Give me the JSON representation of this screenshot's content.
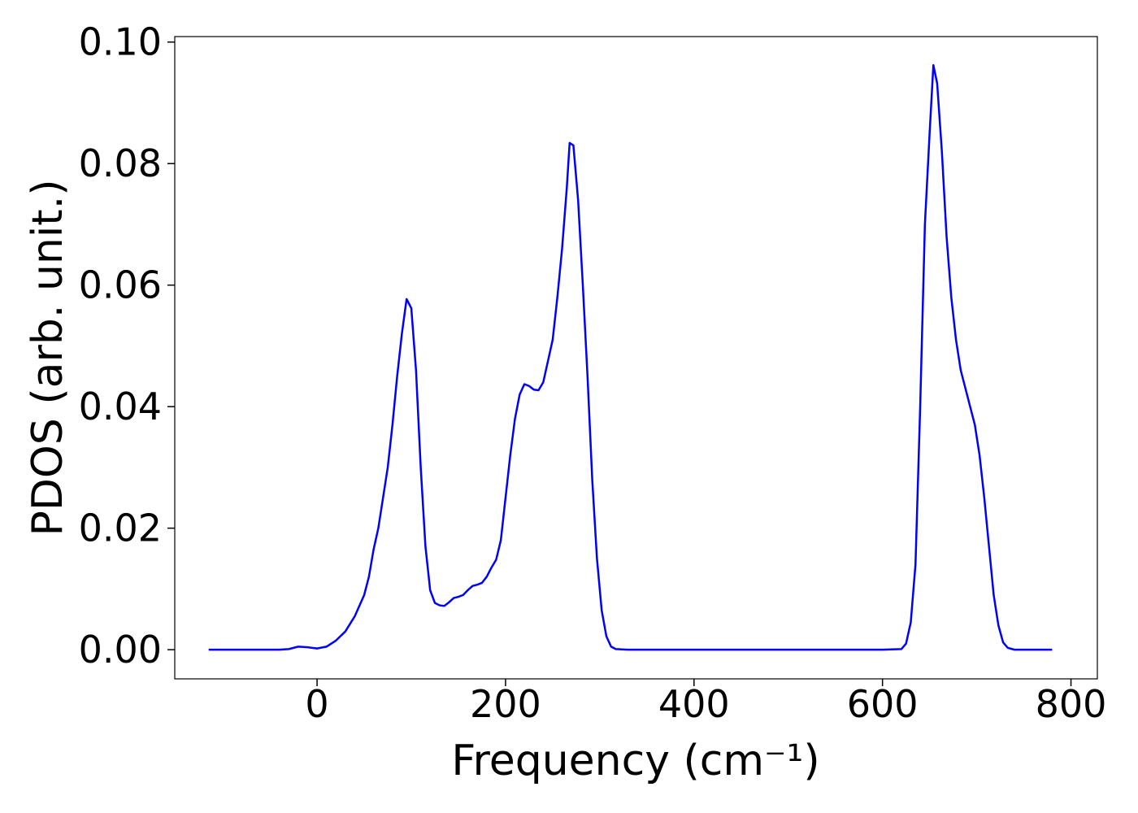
{
  "chart_data": {
    "type": "line",
    "xlabel": "Frequency (cm⁻¹)",
    "ylabel": "PDOS (arb. unit.)",
    "xlim": [
      -151,
      828
    ],
    "ylim": [
      -0.0048,
      0.1009
    ],
    "xticks": [
      0,
      200,
      400,
      600,
      800
    ],
    "yticks": [
      {
        "value": 0,
        "label": "0.00"
      },
      {
        "value": 0.02,
        "label": "0.02"
      },
      {
        "value": 0.04,
        "label": "0.04"
      },
      {
        "value": 0.06,
        "label": "0.06"
      },
      {
        "value": 0.08,
        "label": "0.08"
      },
      {
        "value": 0.1,
        "label": "0.10"
      }
    ],
    "grid": false,
    "x": [
      -115,
      -40,
      -30,
      -20,
      -10,
      0,
      10,
      20,
      30,
      40,
      50,
      55,
      60,
      65,
      70,
      75,
      80,
      85,
      90,
      95,
      100,
      105,
      110,
      115,
      120,
      125,
      130,
      135,
      140,
      145,
      150,
      155,
      160,
      165,
      170,
      175,
      180,
      185,
      190,
      195,
      200,
      205,
      210,
      215,
      220,
      225,
      230,
      235,
      240,
      245,
      250,
      255,
      260,
      265,
      268,
      272,
      277,
      282,
      287,
      292,
      297,
      302,
      307,
      312,
      317,
      330,
      600,
      620,
      625,
      630,
      635,
      640,
      645,
      650,
      654,
      658,
      663,
      668,
      673,
      678,
      683,
      688,
      693,
      698,
      703,
      708,
      713,
      718,
      723,
      728,
      733,
      740,
      780
    ],
    "series": [
      {
        "name": "PDOS",
        "color": "#0000ff",
        "values": [
          0,
          0,
          0.0001,
          0.0005,
          0.0004,
          0.0002,
          0.0005,
          0.0015,
          0.003,
          0.0055,
          0.009,
          0.012,
          0.0165,
          0.02,
          0.025,
          0.03,
          0.037,
          0.045,
          0.052,
          0.0577,
          0.0562,
          0.046,
          0.03,
          0.017,
          0.0098,
          0.0077,
          0.0073,
          0.0072,
          0.0078,
          0.0085,
          0.0087,
          0.009,
          0.0098,
          0.0105,
          0.0107,
          0.011,
          0.012,
          0.0135,
          0.0148,
          0.018,
          0.025,
          0.032,
          0.038,
          0.042,
          0.0437,
          0.0434,
          0.0428,
          0.0427,
          0.044,
          0.0475,
          0.051,
          0.058,
          0.066,
          0.076,
          0.0834,
          0.083,
          0.074,
          0.06,
          0.045,
          0.028,
          0.015,
          0.0065,
          0.0022,
          0.0005,
          0.0001,
          0,
          0,
          0.0001,
          0.001,
          0.0045,
          0.014,
          0.04,
          0.07,
          0.085,
          0.0962,
          0.0932,
          0.082,
          0.068,
          0.058,
          0.051,
          0.046,
          0.043,
          0.04,
          0.037,
          0.032,
          0.025,
          0.017,
          0.009,
          0.004,
          0.0012,
          0.0003,
          0,
          0
        ]
      }
    ]
  }
}
